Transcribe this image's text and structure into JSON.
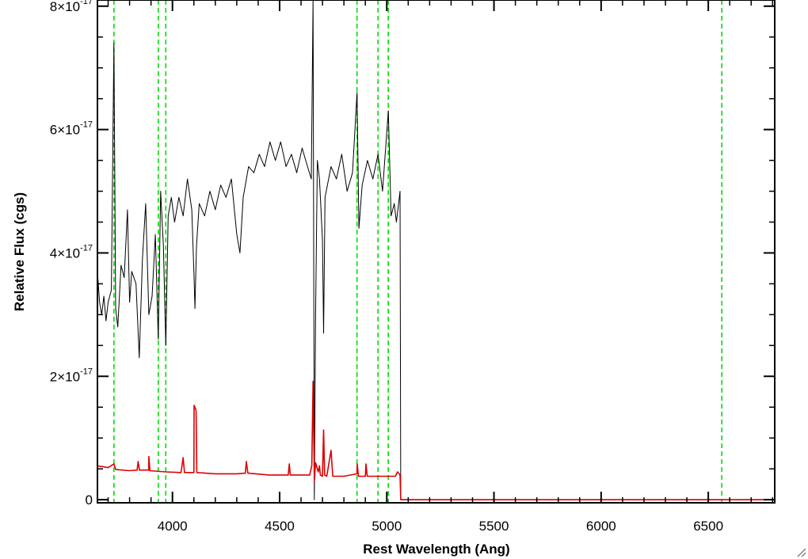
{
  "chart_data": {
    "type": "line",
    "xlabel": "Rest Wavelength (Ang)",
    "ylabel": "Relative Flux (cgs)",
    "xlim": [
      3650,
      6810
    ],
    "ylim": [
      -0.05,
      8.1
    ],
    "y_exponent": "-17",
    "x_ticks": [
      {
        "value": 4000,
        "label": "4000"
      },
      {
        "value": 4500,
        "label": "4500"
      },
      {
        "value": 5000,
        "label": "5000"
      },
      {
        "value": 5500,
        "label": "5500"
      },
      {
        "value": 6000,
        "label": "6000"
      },
      {
        "value": 6500,
        "label": "6500"
      }
    ],
    "x_minor_step": 100,
    "y_ticks": [
      {
        "value": 0,
        "mantissa": "0",
        "exp": ""
      },
      {
        "value": 2,
        "mantissa": "2×10",
        "exp": "-17"
      },
      {
        "value": 4,
        "mantissa": "4×10",
        "exp": "-17"
      },
      {
        "value": 6,
        "mantissa": "6×10",
        "exp": "-17"
      },
      {
        "value": 8,
        "mantissa": "8×10",
        "exp": "-17"
      }
    ],
    "y_minor_step": 0.5,
    "reference_lines": {
      "color": "#00dd00",
      "style": "dashed",
      "x": [
        3727,
        3934,
        3969,
        4861,
        4959,
        5007,
        6563
      ]
    },
    "series": [
      {
        "color": "#000000",
        "points": [
          [
            3650,
            3.7
          ],
          [
            3660,
            3.2
          ],
          [
            3670,
            3.0
          ],
          [
            3680,
            3.3
          ],
          [
            3690,
            2.9
          ],
          [
            3700,
            3.2
          ],
          [
            3715,
            3.4
          ],
          [
            3727,
            7.4
          ],
          [
            3735,
            3.1
          ],
          [
            3745,
            2.8
          ],
          [
            3760,
            3.8
          ],
          [
            3775,
            3.6
          ],
          [
            3790,
            4.7
          ],
          [
            3800,
            3.2
          ],
          [
            3810,
            3.7
          ],
          [
            3830,
            3.5
          ],
          [
            3845,
            2.3
          ],
          [
            3860,
            3.9
          ],
          [
            3875,
            4.8
          ],
          [
            3890,
            3.0
          ],
          [
            3905,
            3.3
          ],
          [
            3920,
            4.3
          ],
          [
            3934,
            2.6
          ],
          [
            3945,
            5.0
          ],
          [
            3958,
            4.1
          ],
          [
            3969,
            2.5
          ],
          [
            3980,
            4.6
          ],
          [
            3995,
            4.9
          ],
          [
            4010,
            4.5
          ],
          [
            4030,
            4.9
          ],
          [
            4050,
            4.6
          ],
          [
            4070,
            5.2
          ],
          [
            4090,
            4.7
          ],
          [
            4101,
            3.6
          ],
          [
            4105,
            3.1
          ],
          [
            4112,
            4.1
          ],
          [
            4125,
            4.8
          ],
          [
            4150,
            4.6
          ],
          [
            4175,
            5.0
          ],
          [
            4200,
            4.7
          ],
          [
            4225,
            5.1
          ],
          [
            4250,
            4.9
          ],
          [
            4275,
            5.2
          ],
          [
            4300,
            4.3
          ],
          [
            4315,
            4.0
          ],
          [
            4330,
            4.9
          ],
          [
            4355,
            5.4
          ],
          [
            4380,
            5.3
          ],
          [
            4405,
            5.6
          ],
          [
            4430,
            5.4
          ],
          [
            4455,
            5.8
          ],
          [
            4480,
            5.5
          ],
          [
            4505,
            5.8
          ],
          [
            4530,
            5.4
          ],
          [
            4555,
            5.6
          ],
          [
            4580,
            5.3
          ],
          [
            4605,
            5.7
          ],
          [
            4630,
            5.4
          ],
          [
            4648,
            5.2
          ],
          [
            4656,
            8.1
          ],
          [
            4662,
            0.0
          ],
          [
            4668,
            3.0
          ],
          [
            4676,
            5.5
          ],
          [
            4686,
            5.2
          ],
          [
            4700,
            4.2
          ],
          [
            4705,
            2.7
          ],
          [
            4712,
            4.9
          ],
          [
            4740,
            5.4
          ],
          [
            4765,
            5.2
          ],
          [
            4790,
            5.6
          ],
          [
            4815,
            5.0
          ],
          [
            4840,
            5.3
          ],
          [
            4861,
            6.6
          ],
          [
            4870,
            4.4
          ],
          [
            4885,
            5.1
          ],
          [
            4910,
            5.5
          ],
          [
            4935,
            5.2
          ],
          [
            4959,
            5.6
          ],
          [
            4980,
            5.0
          ],
          [
            5007,
            6.3
          ],
          [
            5020,
            4.6
          ],
          [
            5035,
            4.8
          ],
          [
            5045,
            4.5
          ],
          [
            5055,
            4.8
          ],
          [
            5062,
            5.0
          ],
          [
            5065,
            0.0
          ],
          [
            6810,
            0.0
          ]
        ]
      },
      {
        "color": "#dd0000",
        "points": [
          [
            3650,
            0.55
          ],
          [
            3700,
            0.52
          ],
          [
            3727,
            0.58
          ],
          [
            3735,
            0.49
          ],
          [
            3800,
            0.47
          ],
          [
            3835,
            0.48
          ],
          [
            3840,
            0.62
          ],
          [
            3846,
            0.48
          ],
          [
            3889,
            0.48
          ],
          [
            3890,
            0.7
          ],
          [
            3895,
            0.47
          ],
          [
            3970,
            0.45
          ],
          [
            4040,
            0.44
          ],
          [
            4050,
            0.68
          ],
          [
            4056,
            0.44
          ],
          [
            4100,
            0.44
          ],
          [
            4101,
            1.53
          ],
          [
            4110,
            1.45
          ],
          [
            4114,
            0.44
          ],
          [
            4200,
            0.42
          ],
          [
            4300,
            0.42
          ],
          [
            4340,
            0.43
          ],
          [
            4345,
            0.62
          ],
          [
            4352,
            0.43
          ],
          [
            4450,
            0.4
          ],
          [
            4540,
            0.4
          ],
          [
            4545,
            0.58
          ],
          [
            4550,
            0.4
          ],
          [
            4640,
            0.4
          ],
          [
            4650,
            0.55
          ],
          [
            4656,
            1.92
          ],
          [
            4662,
            0.3
          ],
          [
            4668,
            0.6
          ],
          [
            4680,
            0.45
          ],
          [
            4686,
            0.55
          ],
          [
            4690,
            0.4
          ],
          [
            4700,
            0.38
          ],
          [
            4705,
            1.13
          ],
          [
            4710,
            0.4
          ],
          [
            4720,
            0.38
          ],
          [
            4740,
            0.8
          ],
          [
            4748,
            0.38
          ],
          [
            4800,
            0.38
          ],
          [
            4861,
            0.42
          ],
          [
            4862,
            0.58
          ],
          [
            4868,
            0.38
          ],
          [
            4900,
            0.38
          ],
          [
            4903,
            0.58
          ],
          [
            4909,
            0.38
          ],
          [
            5040,
            0.38
          ],
          [
            5050,
            0.45
          ],
          [
            5062,
            0.4
          ],
          [
            5065,
            0.0
          ],
          [
            6810,
            0.0
          ]
        ]
      }
    ]
  }
}
